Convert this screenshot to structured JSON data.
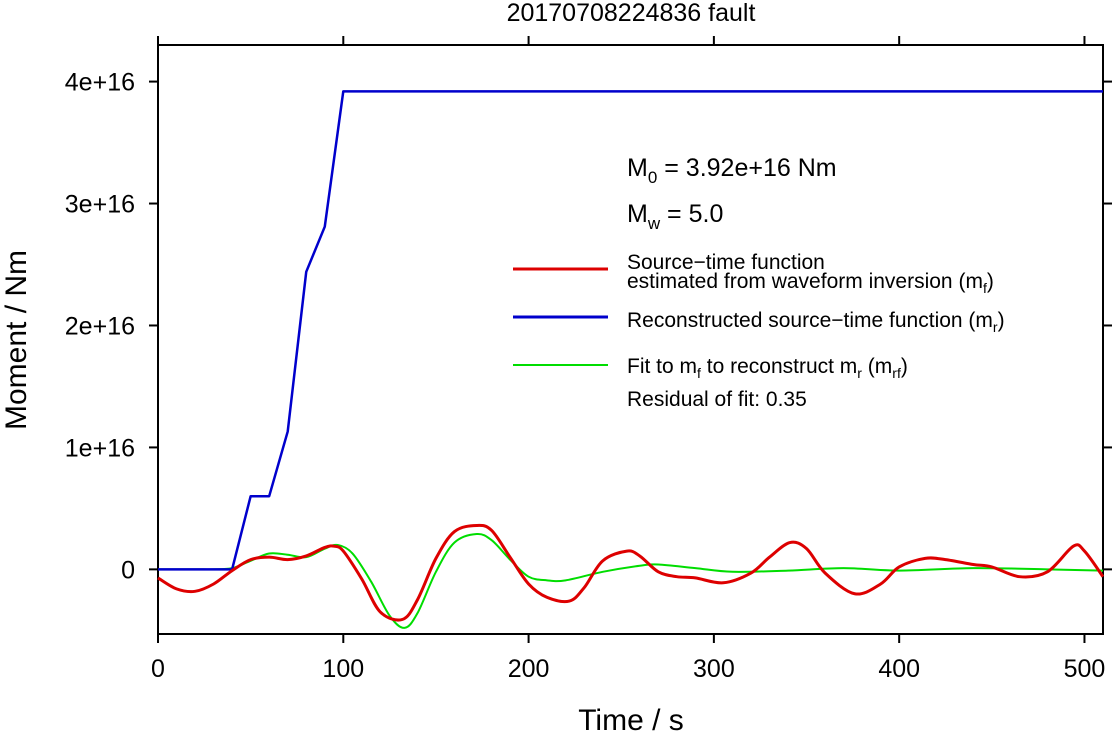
{
  "chart_data": {
    "type": "line",
    "title": "20170708224836 fault",
    "xlabel": "Time / s",
    "ylabel": "Moment / Nm",
    "xlim": [
      0,
      510
    ],
    "ylim": [
      -5300000000000000.0,
      4.3e+16
    ],
    "x_ticks": [
      {
        "value": 0,
        "label": "0"
      },
      {
        "value": 100,
        "label": "100"
      },
      {
        "value": 200,
        "label": "200"
      },
      {
        "value": 300,
        "label": "300"
      },
      {
        "value": 400,
        "label": "400"
      },
      {
        "value": 500,
        "label": "500"
      }
    ],
    "y_ticks": [
      {
        "value": 0,
        "label": "0"
      },
      {
        "value": 1e+16,
        "label": "1e+16"
      },
      {
        "value": 2e+16,
        "label": "2e+16"
      },
      {
        "value": 3e+16,
        "label": "3e+16"
      },
      {
        "value": 4e+16,
        "label": "4e+16"
      }
    ],
    "grid": false,
    "legend_position": "right",
    "annotations": {
      "m0_label": "M",
      "m0_sub": "0",
      "m0_value": " = 3.92e+16 Nm",
      "mw_label": "M",
      "mw_sub": "w",
      "mw_value": " = 5.0",
      "residual": "Residual of fit: 0.35"
    },
    "legend": [
      {
        "color": "#dd0000",
        "line1": "Source−time function",
        "line2_pre": "estimated from waveform inversion (m",
        "line2_sub": "f",
        "line2_post": ")"
      },
      {
        "color": "#0000cc",
        "line1_pre": "Reconstructed source−time function (m",
        "line1_sub": "r",
        "line1_post": ")"
      },
      {
        "color": "#00dd00",
        "p1": "Fit to m",
        "s1": "f",
        "p2": " to reconstruct m",
        "s2": "r",
        "p3": " (m",
        "s3": "rf",
        "p4": ")"
      }
    ],
    "series": [
      {
        "color": "#dd0000",
        "x": [
          0,
          10,
          20,
          30,
          40,
          50,
          60,
          70,
          80,
          90,
          95,
          100,
          110,
          120,
          132,
          140,
          150,
          160,
          172,
          180,
          190,
          200,
          210,
          222,
          230,
          240,
          253,
          260,
          270,
          280,
          290,
          305,
          320,
          330,
          341,
          350,
          360,
          376,
          390,
          400,
          414,
          425,
          440,
          450,
          465,
          480,
          494,
          500,
          510
        ],
        "y": [
          -700000000000000.0,
          -1600000000000000.0,
          -1800000000000000.0,
          -1200000000000000.0,
          -100000000000000.0,
          800000000000000.0,
          1000000000000000.0,
          800000000000000.0,
          1100000000000000.0,
          1800000000000000.0,
          1900000000000000.0,
          1500000000000000.0,
          -800000000000000.0,
          -3500000000000000.0,
          -4100000000000000.0,
          -2500000000000000.0,
          900000000000000.0,
          3100000000000000.0,
          3600000000000000.0,
          3200000000000000.0,
          1000000000000000.0,
          -1200000000000000.0,
          -2300000000000000.0,
          -2600000000000000.0,
          -1500000000000000.0,
          700000000000000.0,
          1500000000000000.0,
          1100000000000000.0,
          -200000000000000.0,
          -600000000000000.0,
          -700000000000000.0,
          -1100000000000000.0,
          -300000000000000.0,
          1000000000000000.0,
          2200000000000000.0,
          1700000000000000.0,
          -300000000000000.0,
          -2000000000000000.0,
          -1200000000000000.0,
          200000000000000.0,
          900000000000000.0,
          800000000000000.0,
          400000000000000.0,
          200000000000000.0,
          -600000000000000.0,
          -200000000000000.0,
          1900000000000000.0,
          1500000000000000.0,
          -600000000000000.0
        ]
      },
      {
        "color": "#0000cc",
        "x": [
          0,
          40,
          50,
          60,
          70,
          80,
          90,
          100,
          510
        ],
        "y": [
          0,
          0,
          6000000000000000.0,
          6000000000000000.0,
          1.13e+16,
          2.44e+16,
          2.81e+16,
          3.92e+16,
          3.92e+16
        ]
      },
      {
        "color": "#00dd00",
        "x": [
          0,
          20,
          30,
          40,
          50,
          60,
          70,
          80,
          90,
          97,
          105,
          115,
          125,
          133,
          140,
          150,
          160,
          172,
          180,
          190,
          200,
          210,
          220,
          240,
          260,
          270,
          290,
          310,
          340,
          370,
          400,
          440,
          480,
          510
        ],
        "y": [
          0,
          0,
          0,
          100000000000000.0,
          700000000000000.0,
          1300000000000000.0,
          1200000000000000.0,
          1000000000000000.0,
          1700000000000000.0,
          2000000000000000.0,
          1300000000000000.0,
          -1000000000000000.0,
          -3800000000000000.0,
          -4800000000000000.0,
          -3600000000000000.0,
          -200000000000000.0,
          2200000000000000.0,
          2900000000000000.0,
          2400000000000000.0,
          800000000000000.0,
          -600000000000000.0,
          -900000000000000.0,
          -900000000000000.0,
          -200000000000000.0,
          300000000000000.0,
          400000000000000.0,
          100000000000000.0,
          -200000000000000.0,
          -100000000000000.0,
          100000000000000.0,
          -100000000000000.0,
          100000000000000.0,
          0,
          -100000000000000.0
        ]
      }
    ]
  }
}
